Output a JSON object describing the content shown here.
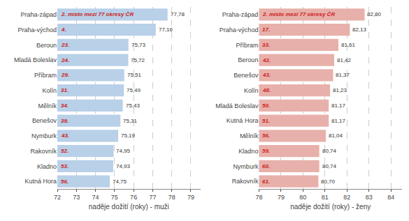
{
  "chart_data": [
    {
      "type": "bar",
      "orientation": "horizontal",
      "categories": [
        "Praha-západ",
        "Praha-východ",
        "Beroun",
        "Mladá Boleslav",
        "Příbram",
        "Kolín",
        "Mělník",
        "Benešov",
        "Nymburk",
        "Rakovník",
        "Kladno",
        "Kutná Hora"
      ],
      "values": [
        77.78,
        77.16,
        75.73,
        75.72,
        75.51,
        75.49,
        75.43,
        75.31,
        75.19,
        74.95,
        74.93,
        74.75
      ],
      "value_labels": [
        "77,78",
        "77,16",
        "75,73",
        "75,72",
        "75,51",
        "75,49",
        "75,43",
        "75,31",
        "75,19",
        "74,95",
        "74,93",
        "74,75"
      ],
      "data_labels": true,
      "color": "#b8d0e8",
      "xlabel": "naděje dožití (roky) - muži",
      "xlim": [
        72,
        79.5
      ],
      "xticks": [
        72,
        73,
        74,
        75,
        76,
        77,
        78,
        79
      ],
      "grid": true,
      "annotations": [
        {
          "category": "Praha-západ",
          "text": "2. místo mezi 77 okresy ČR",
          "color": "#cc2222"
        },
        {
          "category": "Praha-východ",
          "text": "4.",
          "color": "#cc2222"
        },
        {
          "category": "Beroun",
          "text": "23.",
          "color": "#cc2222"
        },
        {
          "category": "Mladá Boleslav",
          "text": "24.",
          "color": "#cc2222"
        },
        {
          "category": "Příbram",
          "text": "29.",
          "color": "#cc2222"
        },
        {
          "category": "Kolín",
          "text": "31.",
          "color": "#cc2222"
        },
        {
          "category": "Mělník",
          "text": "34.",
          "color": "#cc2222"
        },
        {
          "category": "Benešov",
          "text": "39.",
          "color": "#cc2222"
        },
        {
          "category": "Nymburk",
          "text": "43.",
          "color": "#cc2222"
        },
        {
          "category": "Rakovník",
          "text": "52.",
          "color": "#cc2222"
        },
        {
          "category": "Kladno",
          "text": "53.",
          "color": "#cc2222"
        },
        {
          "category": "Kutná Hora",
          "text": "56.",
          "color": "#cc2222"
        }
      ]
    },
    {
      "type": "bar",
      "orientation": "horizontal",
      "categories": [
        "Praha-západ",
        "Praha-východ",
        "Příbram",
        "Beroun",
        "Benešov",
        "Kolín",
        "Mladá Boleslav",
        "Kutná Hora",
        "Mělník",
        "Kladno",
        "Nymburk",
        "Rakovník"
      ],
      "values": [
        82.8,
        82.13,
        81.61,
        81.42,
        81.37,
        81.23,
        81.17,
        81.17,
        81.04,
        80.74,
        80.74,
        80.7
      ],
      "value_labels": [
        "82,80",
        "82,13",
        "81,61",
        "81,42",
        "81,37",
        "81,23",
        "81,17",
        "81,17",
        "81,04",
        "80,74",
        "80,74",
        "80,70"
      ],
      "data_labels": true,
      "color": "#e8b0aa",
      "xlabel": "naděje dožití (roky) - ženy",
      "xlim": [
        78,
        84.5
      ],
      "xticks": [
        78,
        79,
        80,
        81,
        82,
        83,
        84
      ],
      "grid": true,
      "annotations": [
        {
          "category": "Praha-západ",
          "text": "2. místo mezi 77 okresy ČR",
          "color": "#cc2222"
        },
        {
          "category": "Praha-východ",
          "text": "17.",
          "color": "#cc2222"
        },
        {
          "category": "Příbram",
          "text": "33.",
          "color": "#cc2222"
        },
        {
          "category": "Beroun",
          "text": "42.",
          "color": "#cc2222"
        },
        {
          "category": "Benešov",
          "text": "43.",
          "color": "#cc2222"
        },
        {
          "category": "Kolín",
          "text": "48.",
          "color": "#cc2222"
        },
        {
          "category": "Mladá Boleslav",
          "text": "50.",
          "color": "#cc2222"
        },
        {
          "category": "Kutná Hora",
          "text": "51.",
          "color": "#cc2222"
        },
        {
          "category": "Mělník",
          "text": "56.",
          "color": "#cc2222"
        },
        {
          "category": "Kladno",
          "text": "59.",
          "color": "#cc2222"
        },
        {
          "category": "Nymburk",
          "text": "60.",
          "color": "#cc2222"
        },
        {
          "category": "Rakovník",
          "text": "61.",
          "color": "#cc2222"
        }
      ]
    }
  ]
}
